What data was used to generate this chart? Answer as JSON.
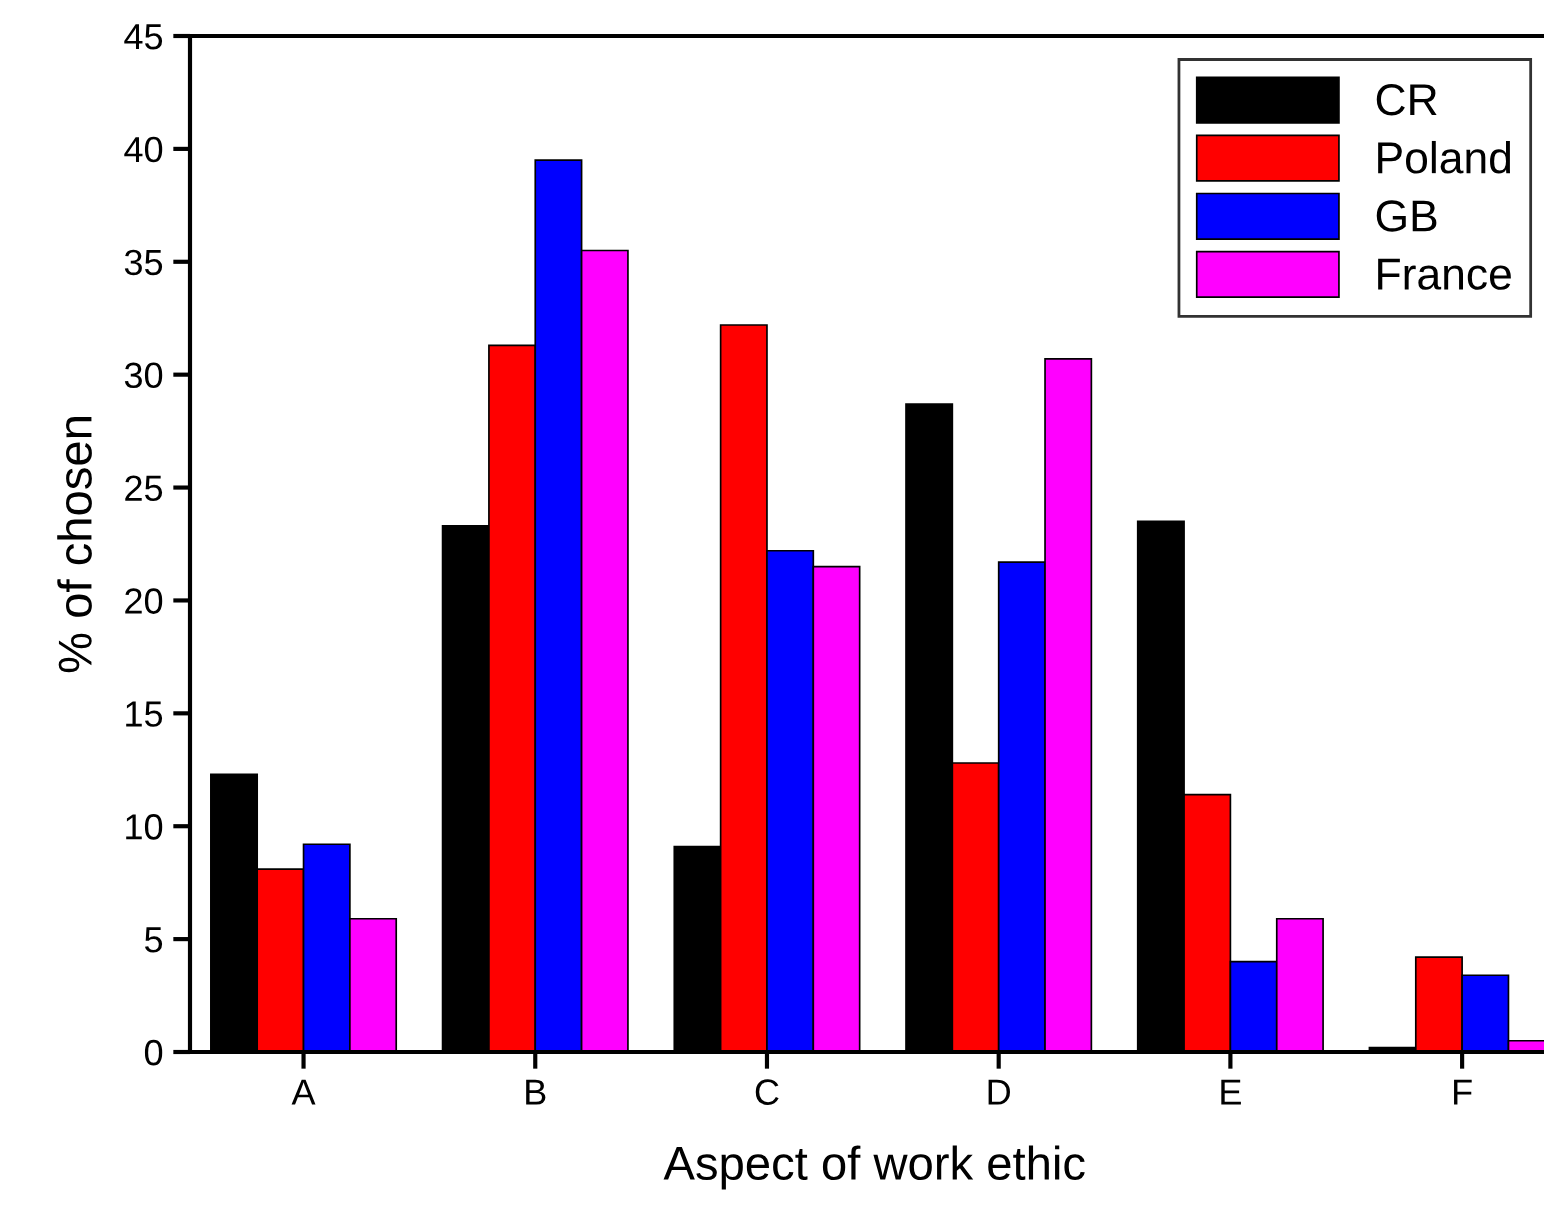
{
  "chart_data": {
    "type": "bar",
    "xlabel": "Aspect of work ethic",
    "ylabel": "% of chosen",
    "categories": [
      "A",
      "B",
      "C",
      "D",
      "E",
      "F"
    ],
    "series": [
      {
        "name": "CR",
        "color": "#000000",
        "values": [
          12.3,
          23.3,
          9.1,
          28.7,
          23.5,
          0.2
        ]
      },
      {
        "name": "Poland",
        "color": "#ff0000",
        "values": [
          8.1,
          31.3,
          32.2,
          12.8,
          11.4,
          4.2
        ]
      },
      {
        "name": "GB",
        "color": "#0000ff",
        "values": [
          9.2,
          39.5,
          22.2,
          21.7,
          4.0,
          3.4
        ]
      },
      {
        "name": "France",
        "color": "#ff00ff",
        "values": [
          5.9,
          35.5,
          21.5,
          30.7,
          5.9,
          0.5
        ]
      }
    ],
    "ylim": [
      0,
      45
    ],
    "yticks": [
      0,
      5,
      10,
      15,
      20,
      25,
      30,
      35,
      40,
      45
    ],
    "grid": false,
    "legend": "top right"
  }
}
